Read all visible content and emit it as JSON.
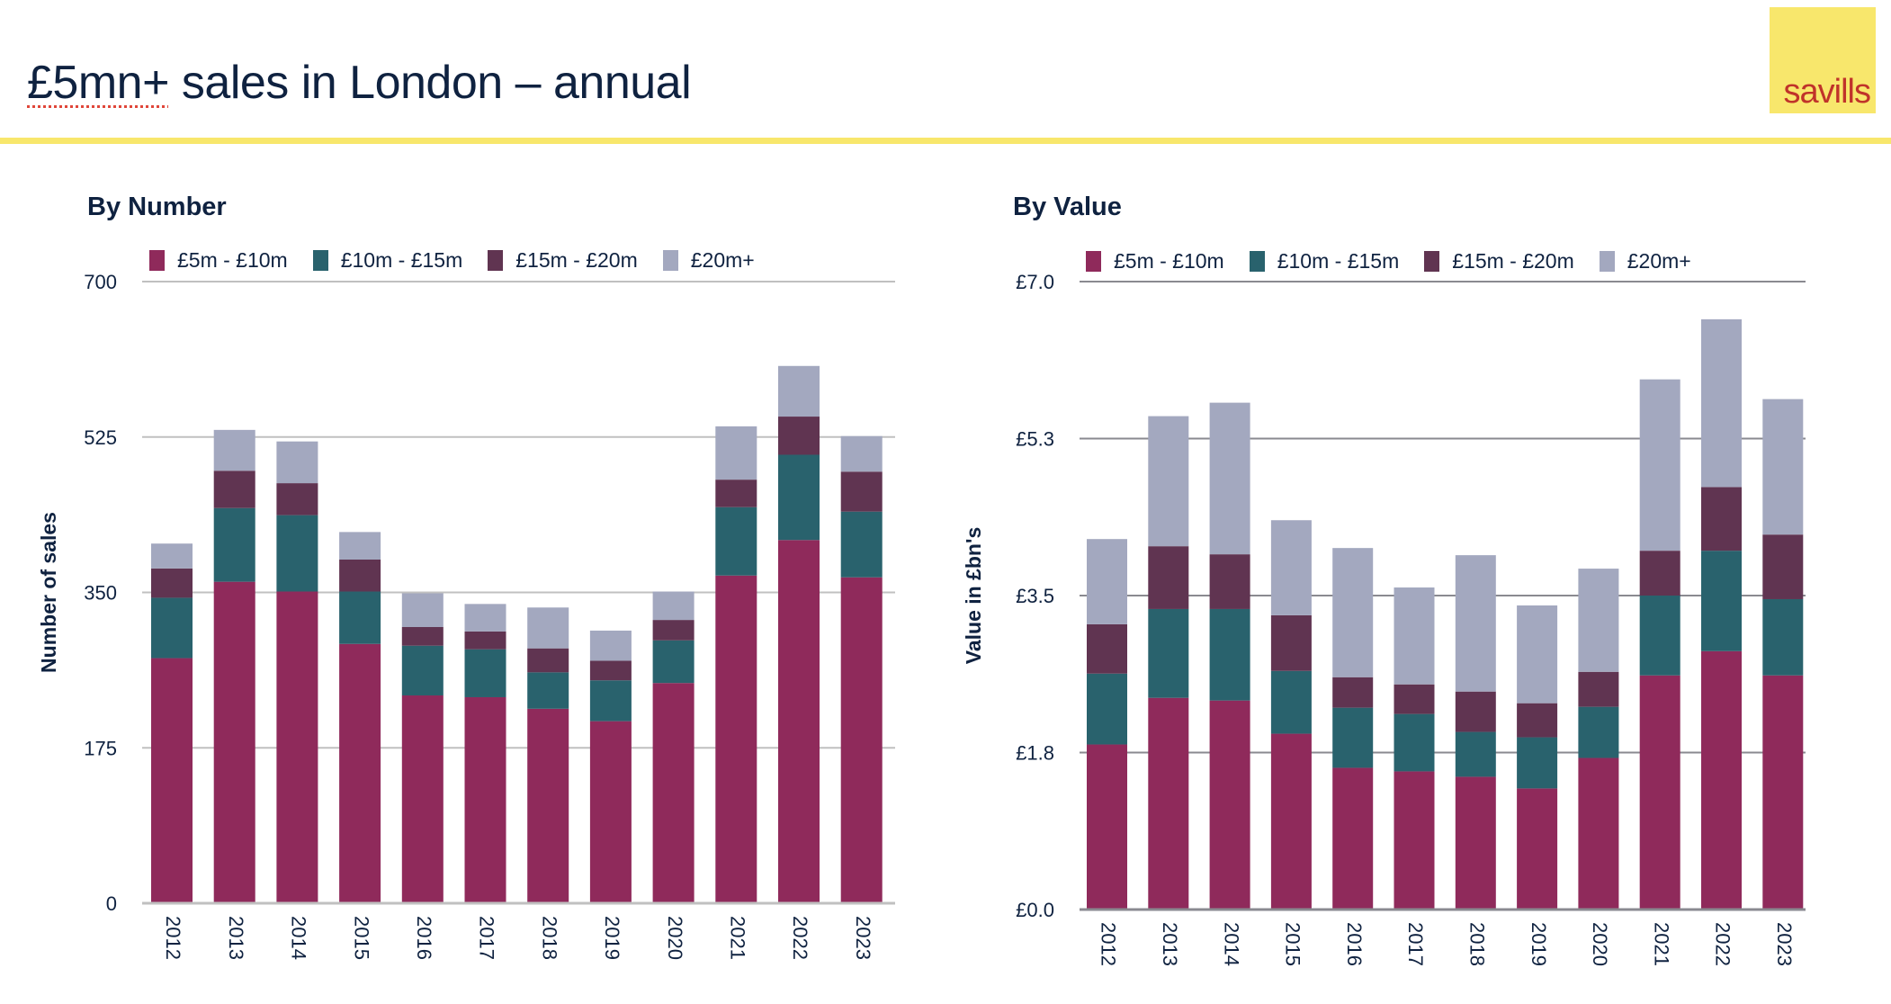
{
  "header": {
    "title_prefix": "£5mn+",
    "title_rest": " sales in London – annual",
    "logo_text": "savills",
    "brand_yellow": "#f8e76c",
    "brand_red": "#c0332a"
  },
  "series_colors": {
    "£5m - £10m": "#8f2a5b",
    "£10m - £15m": "#29626d",
    "£15m - £20m": "#603451",
    "£20m+": "#a3a8bf"
  },
  "chart_data": [
    {
      "type": "bar",
      "stacked": true,
      "title": "By Number",
      "xlabel": "",
      "ylabel": "Number of sales",
      "ylim": [
        0,
        700
      ],
      "yticks": [
        0,
        175,
        350,
        525,
        700
      ],
      "ytick_labels": [
        "0",
        "175",
        "350",
        "525",
        "700"
      ],
      "grid": true,
      "legend": "top",
      "categories": [
        "2012",
        "2013",
        "2014",
        "2015",
        "2016",
        "2017",
        "2018",
        "2019",
        "2020",
        "2021",
        "2022",
        "2023"
      ],
      "series": [
        {
          "name": "£5m - £10m",
          "values": [
            276,
            362,
            351,
            292,
            234,
            232,
            219,
            205,
            248,
            369,
            409,
            367
          ]
        },
        {
          "name": "£10m - £15m",
          "values": [
            68,
            83,
            86,
            59,
            56,
            54,
            41,
            46,
            48,
            77,
            96,
            74
          ]
        },
        {
          "name": "£15m - £20m",
          "values": [
            33,
            42,
            36,
            36,
            21,
            20,
            27,
            22,
            23,
            31,
            43,
            45
          ]
        },
        {
          "name": "£20m+",
          "values": [
            28,
            46,
            47,
            31,
            38,
            31,
            46,
            34,
            32,
            60,
            57,
            40
          ]
        }
      ]
    },
    {
      "type": "bar",
      "stacked": true,
      "title": "By Value",
      "xlabel": "",
      "ylabel": "Value in £bn's",
      "ylim": [
        0,
        7.0
      ],
      "yticks": [
        0,
        1.75,
        3.5,
        5.25,
        7.0
      ],
      "ytick_labels": [
        "£0.0",
        "£1.8",
        "£3.5",
        "£5.3",
        "£7.0"
      ],
      "grid": true,
      "legend": "top",
      "categories": [
        "2012",
        "2013",
        "2014",
        "2015",
        "2016",
        "2017",
        "2018",
        "2019",
        "2020",
        "2021",
        "2022",
        "2023"
      ],
      "series": [
        {
          "name": "£5m - £10m",
          "values": [
            1.84,
            2.36,
            2.33,
            1.96,
            1.58,
            1.54,
            1.48,
            1.35,
            1.69,
            2.61,
            2.88,
            2.61
          ]
        },
        {
          "name": "£10m - £15m",
          "values": [
            0.79,
            0.99,
            1.02,
            0.7,
            0.67,
            0.64,
            0.5,
            0.57,
            0.57,
            0.89,
            1.12,
            0.85
          ]
        },
        {
          "name": "£15m - £20m",
          "values": [
            0.55,
            0.7,
            0.61,
            0.62,
            0.34,
            0.33,
            0.45,
            0.38,
            0.39,
            0.5,
            0.71,
            0.72
          ]
        },
        {
          "name": "£20m+",
          "values": [
            0.95,
            1.45,
            1.69,
            1.06,
            1.44,
            1.08,
            1.52,
            1.09,
            1.15,
            1.91,
            1.87,
            1.51
          ]
        }
      ]
    }
  ]
}
